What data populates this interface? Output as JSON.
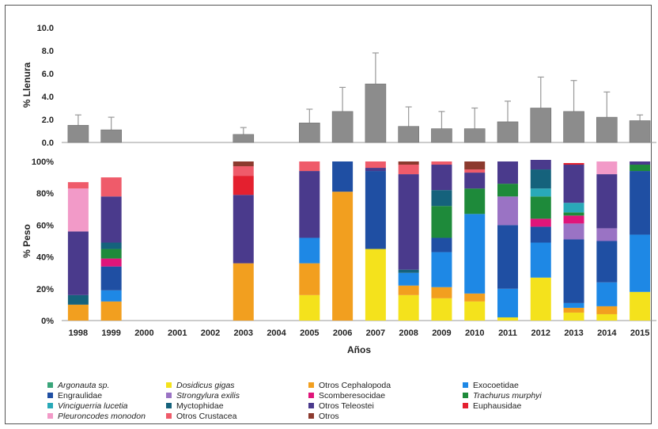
{
  "chart_data": [
    {
      "type": "bar",
      "ylabel": "% Llenura",
      "ylim": [
        0,
        10
      ],
      "yticks": [
        "10.0",
        "8.0",
        "6.0",
        "4.0",
        "2.0",
        "0.0"
      ],
      "color": "#8c8c8c",
      "categories": [
        "1998",
        "1999",
        "2000",
        "2001",
        "2002",
        "2003",
        "2004",
        "2005",
        "2006",
        "2007",
        "2008",
        "2009",
        "2010",
        "2011",
        "2012",
        "2013",
        "2014",
        "2015"
      ],
      "values": [
        1.5,
        1.1,
        null,
        null,
        null,
        0.7,
        null,
        1.7,
        2.7,
        5.1,
        1.4,
        1.2,
        1.2,
        1.8,
        3.0,
        2.7,
        2.2,
        1.9
      ],
      "error_upper": [
        2.4,
        2.2,
        null,
        null,
        null,
        1.3,
        null,
        2.9,
        4.8,
        7.8,
        3.1,
        2.7,
        3.0,
        3.6,
        5.7,
        5.4,
        4.4,
        2.4
      ]
    },
    {
      "type": "stacked-bar",
      "ylabel": "% Peso",
      "xlabel": "Años",
      "ylim": [
        0,
        100
      ],
      "yticks": [
        "100%",
        "80%",
        "60%",
        "40%",
        "20%",
        "0%"
      ],
      "categories": [
        "1998",
        "1999",
        "2000",
        "2001",
        "2002",
        "2003",
        "2004",
        "2005",
        "2006",
        "2007",
        "2008",
        "2009",
        "2010",
        "2011",
        "2012",
        "2013",
        "2014",
        "2015"
      ],
      "series": [
        {
          "name": "Argonauta sp.",
          "color": "#3aa57a",
          "italic": true,
          "values": [
            0,
            0,
            0,
            0,
            0,
            0,
            0,
            0,
            0,
            0,
            0,
            0,
            0,
            0,
            0,
            0,
            0,
            0
          ]
        },
        {
          "name": "Dosidicus gigas",
          "color": "#f4e21c",
          "italic": true,
          "values": [
            0,
            0,
            0,
            0,
            0,
            0,
            0,
            16,
            0,
            45,
            16,
            14,
            12,
            2,
            27,
            5,
            4,
            18
          ]
        },
        {
          "name": "Otros Cephalopoda",
          "color": "#f29f1f",
          "italic": false,
          "values": [
            10,
            12,
            0,
            0,
            0,
            36,
            0,
            20,
            81,
            0,
            6,
            7,
            5,
            0,
            0,
            3,
            5,
            0
          ]
        },
        {
          "name": "Exocoetidae",
          "color": "#1e88e5",
          "italic": false,
          "values": [
            0,
            7,
            0,
            0,
            0,
            0,
            0,
            16,
            0,
            0,
            8,
            22,
            50,
            18,
            22,
            3,
            15,
            36
          ]
        },
        {
          "name": "Engraulidae",
          "color": "#1f4fa3",
          "italic": false,
          "values": [
            0,
            15,
            0,
            0,
            0,
            0,
            0,
            0,
            19,
            49,
            0,
            9,
            0,
            40,
            10,
            40,
            26,
            40
          ]
        },
        {
          "name": "Strongylura exilis",
          "color": "#9a73c4",
          "italic": true,
          "values": [
            0,
            0,
            0,
            0,
            0,
            0,
            0,
            0,
            0,
            0,
            0,
            0,
            0,
            18,
            0,
            10,
            8,
            0
          ]
        },
        {
          "name": "Scomberesocidae",
          "color": "#e0157a",
          "italic": false,
          "values": [
            0,
            5,
            0,
            0,
            0,
            0,
            0,
            0,
            0,
            0,
            0,
            0,
            0,
            0,
            5,
            5,
            0,
            0
          ]
        },
        {
          "name": "Trachurus murphyi",
          "color": "#1e8a3a",
          "italic": true,
          "values": [
            0,
            6,
            0,
            0,
            0,
            0,
            0,
            0,
            0,
            0,
            0,
            20,
            16,
            8,
            14,
            2,
            0,
            4
          ]
        },
        {
          "name": "Vinciguerria lucetia",
          "color": "#29a9b8",
          "italic": true,
          "values": [
            0,
            0,
            0,
            0,
            0,
            0,
            0,
            0,
            0,
            0,
            0,
            0,
            0,
            0,
            5,
            6,
            0,
            0
          ]
        },
        {
          "name": "Myctophidae",
          "color": "#15627c",
          "italic": false,
          "values": [
            6,
            4,
            0,
            0,
            0,
            0,
            0,
            0,
            0,
            0,
            2,
            10,
            0,
            0,
            12,
            0,
            0,
            0
          ]
        },
        {
          "name": "Otros Teleostei",
          "color": "#4a3a8c",
          "italic": false,
          "values": [
            40,
            29,
            0,
            0,
            0,
            43,
            0,
            42,
            0,
            2,
            60,
            16,
            10,
            14,
            6,
            24,
            34,
            2
          ]
        },
        {
          "name": "Euphausidae",
          "color": "#e4202f",
          "italic": false,
          "values": [
            0,
            0,
            0,
            0,
            0,
            12,
            0,
            0,
            0,
            0,
            0,
            0,
            0,
            0,
            0,
            1,
            0,
            0
          ]
        },
        {
          "name": "Pleuroncodes monodon",
          "color": "#f29ac8",
          "italic": true,
          "values": [
            27,
            0,
            0,
            0,
            0,
            0,
            0,
            0,
            0,
            0,
            0,
            0,
            0,
            0,
            0,
            0,
            8,
            0
          ]
        },
        {
          "name": "Otros Crustacea",
          "color": "#ef5b6a",
          "italic": false,
          "values": [
            4,
            12,
            0,
            0,
            0,
            6,
            0,
            6,
            0,
            4,
            6,
            2,
            2,
            0,
            0,
            0,
            0,
            0
          ]
        },
        {
          "name": "Otros",
          "color": "#8c3a2e",
          "italic": false,
          "values": [
            0,
            0,
            0,
            0,
            0,
            3,
            0,
            0,
            0,
            0,
            2,
            0,
            5,
            0,
            0,
            0,
            0,
            0
          ]
        }
      ]
    }
  ]
}
